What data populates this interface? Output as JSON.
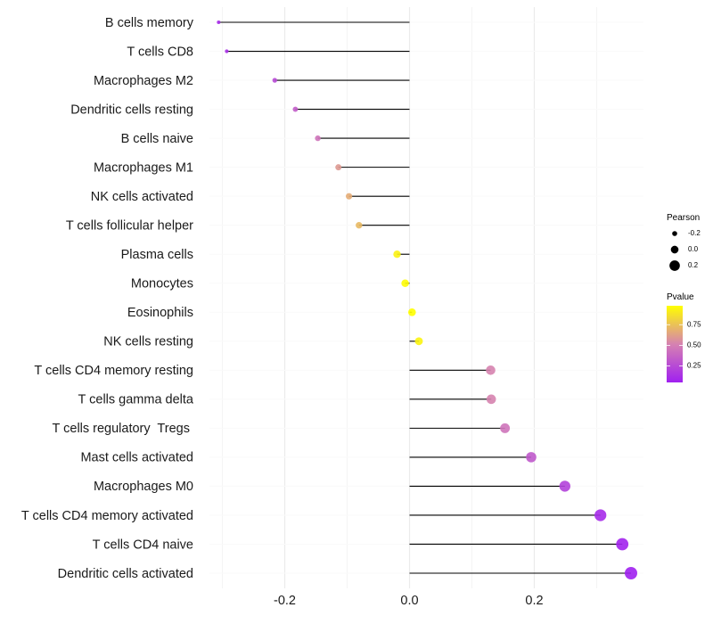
{
  "chart_data": {
    "type": "lollipop",
    "title": "",
    "xlabel": "",
    "ylabel": "",
    "xlim": [
      -0.31,
      0.355
    ],
    "x_ticks": [
      -0.2,
      0.0,
      0.2
    ],
    "x_tick_labels": [
      "-0.2",
      "0.0",
      "0.2"
    ],
    "x_minor_gridlines": [
      -0.3,
      -0.1,
      0.1,
      0.3
    ],
    "grid": true,
    "categories": [
      "B cells memory",
      "T cells CD8",
      "Macrophages M2",
      "Dendritic cells resting",
      "B cells naive",
      "Macrophages M1",
      "NK cells activated",
      "T cells follicular helper",
      "Plasma cells",
      "Monocytes",
      "Eosinophils",
      "NK cells resting",
      "T cells CD4 memory resting",
      "T cells gamma delta",
      "T cells regulatory  Tregs ",
      "Mast cells activated",
      "Macrophages M0",
      "T cells CD4 memory activated",
      "T cells CD4 naive",
      "Dendritic cells activated"
    ],
    "series": [
      {
        "name": "Pearson",
        "values": [
          -0.306,
          -0.293,
          -0.216,
          -0.183,
          -0.147,
          -0.114,
          -0.097,
          -0.081,
          -0.02,
          -0.007,
          0.004,
          0.015,
          0.13,
          0.131,
          0.153,
          0.195,
          0.249,
          0.306,
          0.341,
          0.355
        ]
      },
      {
        "name": "Pvalue",
        "values": [
          0.1,
          0.12,
          0.25,
          0.34,
          0.45,
          0.6,
          0.67,
          0.72,
          0.93,
          0.97,
          0.98,
          0.94,
          0.52,
          0.52,
          0.45,
          0.32,
          0.21,
          0.1,
          0.07,
          0.05
        ]
      }
    ],
    "size_legend": {
      "title": "Pearson",
      "entries": [
        {
          "label": "-0.2",
          "value": -0.2
        },
        {
          "label": "0.0",
          "value": 0.0
        },
        {
          "label": "0.2",
          "value": 0.2
        }
      ]
    },
    "color_legend": {
      "title": "Pvalue",
      "range": [
        0.05,
        0.98
      ],
      "ticks": [
        0.25,
        0.5,
        0.75
      ],
      "tick_labels": [
        "0.25",
        "0.50",
        "0.75"
      ],
      "low_color": "#A020F0",
      "mid_color": "#D682B1",
      "high_color": "#FFFF00"
    },
    "legend_position": "right",
    "stem_color": "#000000",
    "gridline_color": "#EBEBEB"
  }
}
